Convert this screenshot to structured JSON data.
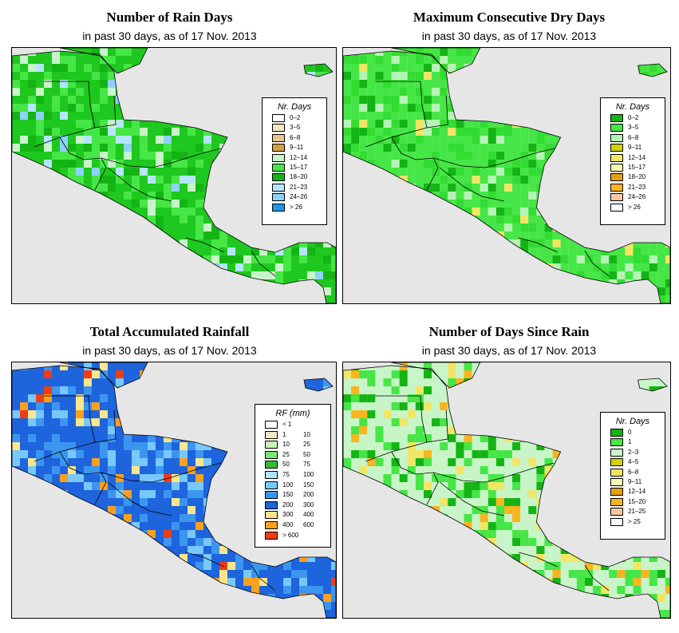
{
  "subtitle": "in past 30 days, as of  17 Nov. 2013",
  "panels": [
    {
      "title": "Number of Rain Days",
      "legend_title": "Nr. Days",
      "legend": [
        {
          "label": "0–2",
          "color": "#ffffff"
        },
        {
          "label": "3–5",
          "color": "#f5e6c8"
        },
        {
          "label": "6–8",
          "color": "#e6c890"
        },
        {
          "label": "9–11",
          "color": "#d2a040"
        },
        {
          "label": "12–14",
          "color": "#c8f5c8"
        },
        {
          "label": "15–17",
          "color": "#46e646"
        },
        {
          "label": "18–20",
          "color": "#14b414"
        },
        {
          "label": "21–23",
          "color": "#b4e6fa"
        },
        {
          "label": "24–26",
          "color": "#8cd2fa"
        },
        {
          "label": "> 26",
          "color": "#1e96f0"
        }
      ],
      "map_palette": [
        "#1ec81e",
        "#46e646",
        "#14b414",
        "#c8f5c8",
        "#b4e6fa",
        "#8cd2fa",
        "#1e96f0",
        "#e6c890"
      ]
    },
    {
      "title": "Maximum Consecutive Dry Days",
      "legend_title": "Nr. Days",
      "legend": [
        {
          "label": "0–2",
          "color": "#14b414"
        },
        {
          "label": "3–5",
          "color": "#46e646"
        },
        {
          "label": "6–8",
          "color": "#b4f5b4"
        },
        {
          "label": "9–11",
          "color": "#d2d200"
        },
        {
          "label": "12–14",
          "color": "#f0e664"
        },
        {
          "label": "15–17",
          "color": "#fafab4"
        },
        {
          "label": "18–20",
          "color": "#e6a014"
        },
        {
          "label": "21–23",
          "color": "#fab41e"
        },
        {
          "label": "24–26",
          "color": "#fac8a0"
        },
        {
          "label": "> 26",
          "color": "#ffffff"
        }
      ],
      "map_palette": [
        "#46e646",
        "#32dc32",
        "#14b414",
        "#b4f5b4",
        "#f0e664"
      ]
    },
    {
      "title": "Total Accumulated Rainfall",
      "legend_title": "RF (mm)",
      "legend": [
        {
          "lo": "< 1",
          "hi": "",
          "color": "#ffffff"
        },
        {
          "lo": "1",
          "hi": "10",
          "color": "#f5e6c8"
        },
        {
          "lo": "10",
          "hi": "25",
          "color": "#c8f5b4"
        },
        {
          "lo": "25",
          "hi": "50",
          "color": "#78e678"
        },
        {
          "lo": "50",
          "hi": "75",
          "color": "#32be32"
        },
        {
          "lo": "75",
          "hi": "100",
          "color": "#b4e6fa"
        },
        {
          "lo": "100",
          "hi": "150",
          "color": "#78c8fa"
        },
        {
          "lo": "150",
          "hi": "200",
          "color": "#3c96f0"
        },
        {
          "lo": "200",
          "hi": "300",
          "color": "#1e64dc"
        },
        {
          "lo": "300",
          "hi": "400",
          "color": "#fae68c"
        },
        {
          "lo": "400",
          "hi": "600",
          "color": "#faa01e"
        },
        {
          "lo": "> 600",
          "hi": "",
          "color": "#f03c14"
        }
      ],
      "map_palette": [
        "#1e64dc",
        "#3c96f0",
        "#78c8fa",
        "#fae68c",
        "#faa01e",
        "#f03c14",
        "#b4e6fa"
      ]
    },
    {
      "title": "Number of Days Since Rain",
      "legend_title": "Nr. Days",
      "legend": [
        {
          "label": "0",
          "color": "#14b414"
        },
        {
          "label": "1",
          "color": "#46e646"
        },
        {
          "label": "2–3",
          "color": "#c8f5c8"
        },
        {
          "label": "4–5",
          "color": "#d2d200"
        },
        {
          "label": "6–8",
          "color": "#f0e664"
        },
        {
          "label": "9–11",
          "color": "#fafab4"
        },
        {
          "label": "12–14",
          "color": "#e6a014"
        },
        {
          "label": "15–20",
          "color": "#fab41e"
        },
        {
          "label": "21–25",
          "color": "#fac8a0"
        },
        {
          "label": "> 25",
          "color": "#ffffff"
        }
      ],
      "map_palette": [
        "#c8f5c8",
        "#46e646",
        "#14b414",
        "#f0e664",
        "#fab41e"
      ]
    }
  ],
  "colors": {
    "ocean": "#e6e6e6",
    "border": "#000000"
  }
}
